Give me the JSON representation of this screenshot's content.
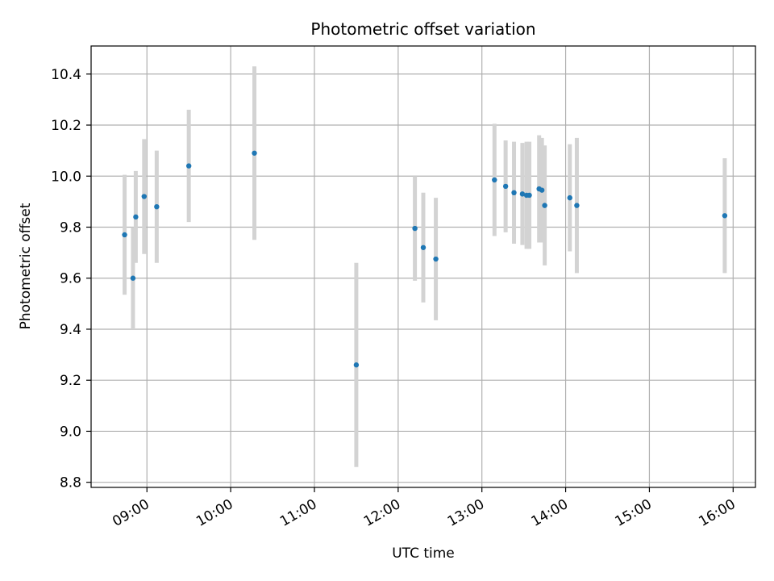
{
  "chart_data": {
    "type": "scatter",
    "title": "Photometric offset variation",
    "xlabel": "UTC time",
    "ylabel": "Photometric offset",
    "x_ticks": [
      "09:00",
      "10:00",
      "11:00",
      "12:00",
      "13:00",
      "14:00",
      "15:00",
      "16:00"
    ],
    "y_ticks": [
      "8.8",
      "9.0",
      "9.2",
      "9.4",
      "9.6",
      "9.8",
      "10.0",
      "10.2",
      "10.4"
    ],
    "xlim": [
      "08:20",
      "16:16"
    ],
    "ylim": [
      8.78,
      10.51
    ],
    "grid": true,
    "marker_color": "#1f77b4",
    "errorbar_color": "#d3d3d3",
    "series": [
      {
        "points": [
          {
            "x": "08:44",
            "y": 9.77,
            "err": 0.235
          },
          {
            "x": "08:50",
            "y": 9.6,
            "err": 0.2
          },
          {
            "x": "08:52",
            "y": 9.84,
            "err": 0.18
          },
          {
            "x": "08:58",
            "y": 9.92,
            "err": 0.225
          },
          {
            "x": "09:07",
            "y": 9.88,
            "err": 0.22
          },
          {
            "x": "09:30",
            "y": 10.04,
            "err": 0.22
          },
          {
            "x": "10:17",
            "y": 10.09,
            "err": 0.34
          },
          {
            "x": "11:30",
            "y": 9.26,
            "err": 0.4
          },
          {
            "x": "12:12",
            "y": 9.795,
            "err": 0.205
          },
          {
            "x": "12:18",
            "y": 9.72,
            "err": 0.215
          },
          {
            "x": "12:27",
            "y": 9.675,
            "err": 0.24
          },
          {
            "x": "13:09",
            "y": 9.985,
            "err": 0.22
          },
          {
            "x": "13:17",
            "y": 9.96,
            "err": 0.18
          },
          {
            "x": "13:23",
            "y": 9.935,
            "err": 0.2
          },
          {
            "x": "13:29",
            "y": 9.93,
            "err": 0.2
          },
          {
            "x": "13:32",
            "y": 9.925,
            "err": 0.21
          },
          {
            "x": "13:34",
            "y": 9.925,
            "err": 0.21
          },
          {
            "x": "13:41",
            "y": 9.95,
            "err": 0.21
          },
          {
            "x": "13:43",
            "y": 9.945,
            "err": 0.205
          },
          {
            "x": "13:45",
            "y": 9.885,
            "err": 0.235
          },
          {
            "x": "14:03",
            "y": 9.915,
            "err": 0.21
          },
          {
            "x": "14:08",
            "y": 9.885,
            "err": 0.265
          },
          {
            "x": "15:54",
            "y": 9.845,
            "err": 0.225
          }
        ]
      }
    ]
  }
}
